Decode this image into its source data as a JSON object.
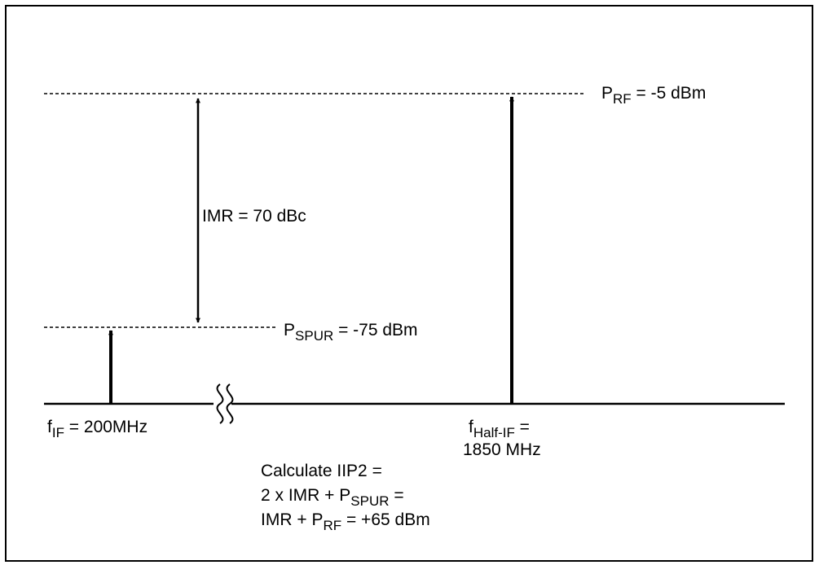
{
  "diagram": {
    "prf": {
      "sym": "P",
      "sub": "RF",
      "rest": " = -5 dBm"
    },
    "pspur": {
      "sym": "P",
      "sub": "SPUR",
      "rest": " = -75 dBm"
    },
    "imr": "IMR = 70 dBc",
    "fif": {
      "sym": "f",
      "sub": "IF",
      "rest": " = 200MHz"
    },
    "fhalf": {
      "sym": "f",
      "sub": "Half-IF",
      "rest": " =",
      "line2": "1850 MHz"
    },
    "calc": {
      "line1": "Calculate IIP2 =",
      "line2": {
        "pre": "2 x IMR + ",
        "sym": "P",
        "sub": "SPUR",
        "rest": " ="
      },
      "line3": {
        "pre": "IMR + ",
        "sym": "P",
        "sub": "RF",
        "rest": " = +65 dBm"
      }
    }
  }
}
